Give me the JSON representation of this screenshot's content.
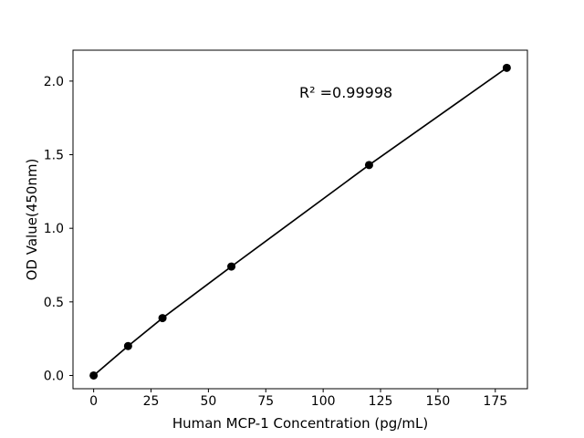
{
  "figure": {
    "background": "#ffffff"
  },
  "chart_data": {
    "type": "line",
    "title": "",
    "xlabel": "Human MCP-1 Concentration (pg/mL)",
    "ylabel": "OD Value(450nm)",
    "annotation": "R² =0.99998",
    "x": [
      0,
      15,
      30,
      60,
      120,
      180
    ],
    "y": [
      0.0,
      0.2,
      0.39,
      0.74,
      1.43,
      2.09
    ],
    "xlim": [
      -9,
      189
    ],
    "ylim": [
      -0.09,
      2.21
    ],
    "xticks": [
      "0",
      "25",
      "50",
      "75",
      "100",
      "125",
      "150",
      "175"
    ],
    "yticks": [
      "0.0",
      "0.5",
      "1.0",
      "1.5",
      "2.0"
    ],
    "grid": false,
    "legend_position": "none",
    "marker": "circle",
    "line_color": "#000000",
    "marker_color": "#000000",
    "text_color": "#000000",
    "border_color": "#000000"
  }
}
